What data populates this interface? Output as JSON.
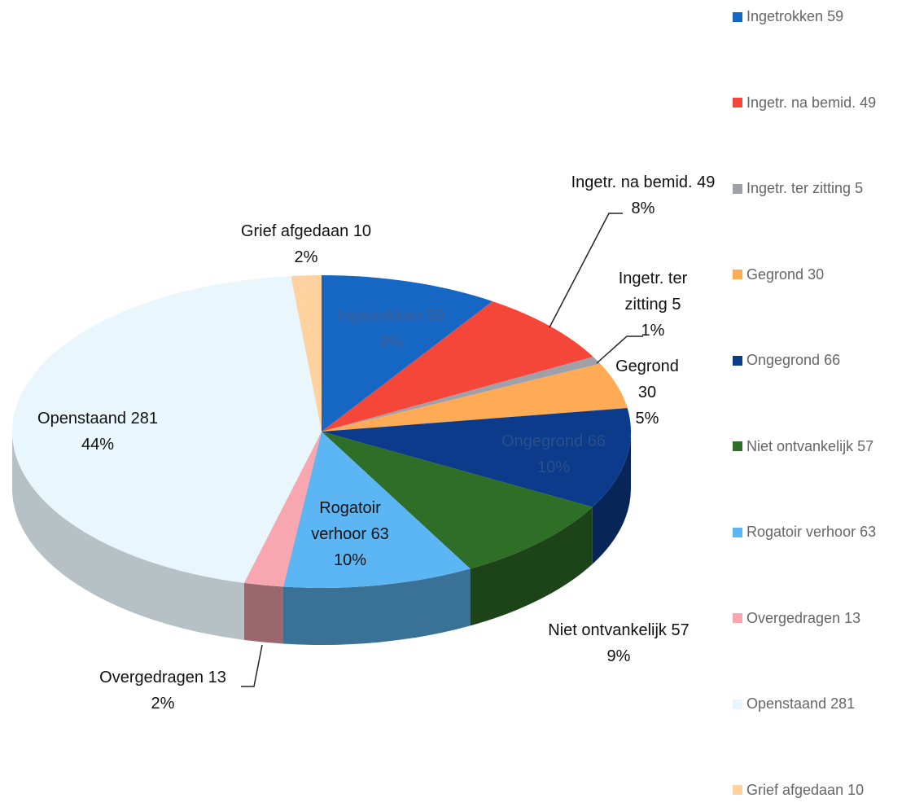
{
  "chart_data": {
    "type": "pie3d",
    "categories": [
      "Ingetrokken",
      "Ingetr. na bemid.",
      "Ingetr. ter zitting",
      "Gegrond",
      "Ongegrond",
      "Niet ontvankelijk",
      "Rogatoir verhoor",
      "Overgedragen",
      "Openstaand",
      "Grief afgedaan"
    ],
    "values": [
      59,
      49,
      5,
      30,
      66,
      57,
      63,
      13,
      281,
      10
    ],
    "percent_labels": [
      "9%",
      "8%",
      "1%",
      "5%",
      "10%",
      "9%",
      "10%",
      "2%",
      "44%",
      "2%"
    ],
    "colors": [
      "#1666c4",
      "#f4473a",
      "#a0a0a8",
      "#ffaa55",
      "#0c3b8c",
      "#2f6e27",
      "#5cb6f3",
      "#f8a6b0",
      "#e9f6fc",
      "#ffd2a0"
    ],
    "legend": "right"
  }
}
